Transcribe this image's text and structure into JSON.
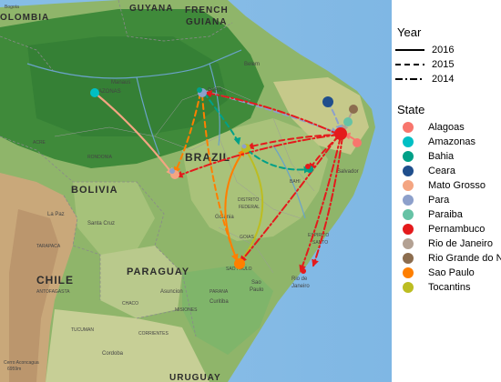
{
  "map": {
    "labels": {
      "colombia": "OLOMBIA",
      "guyana": "GUYANA",
      "french_guiana_1": "FRENCH",
      "french_guiana_2": "GUIANA",
      "bogota": "Bogota",
      "brazil": "BRAZIL",
      "bolivia": "BOLIVIA",
      "chile": "CHILE",
      "paraguay": "PARAGUAY",
      "uruguay": "URUGUAY",
      "manaus": "Manaus",
      "belem": "Belem",
      "amazonas": "AZONAS",
      "para": "PARA",
      "acre": "ACRE",
      "rondonia": "RONDONIA",
      "salvador": "Salvador",
      "bahia": "BAHI",
      "goiania": "Goiania",
      "distrito_1": "DISTRITO",
      "distrito_2": "FEDERAL",
      "goias": "GOIAS",
      "sao_paulo": "SAO PAULO",
      "sao_paulo_city_1": "Sao",
      "sao_paulo_city_2": "Paulo",
      "espirito_1": "ESPIRITO",
      "espirito_2": "SANTO",
      "rio_1": "Rio de",
      "rio_2": "Janeiro",
      "la_paz": "La Paz",
      "santa_cruz": "Santa Cruz",
      "tarapaca": "TARAPACA",
      "antofagasta": "ANTOFAGASTA",
      "chaco": "CHACO",
      "asuncion": "Asuncion",
      "curitiba": "Curitiba",
      "parana": "PARANA",
      "misiones": "MISIONES",
      "corrientes": "CORRIENTES",
      "tucuman": "TUCUMAN",
      "cordoba": "Cordoba",
      "cerro_1": "Cerro Aconcagua",
      "cerro_2": "6959m"
    }
  },
  "legend": {
    "year_title": "Year",
    "years": [
      {
        "label": "2016",
        "dash": "solid"
      },
      {
        "label": "2015",
        "dash": "dashed"
      },
      {
        "label": "2014",
        "dash": "dotdash"
      }
    ],
    "state_title": "State",
    "states": [
      {
        "label": "Alagoas",
        "color": "#f8766d"
      },
      {
        "label": "Amazonas",
        "color": "#00bfc4"
      },
      {
        "label": "Bahia",
        "color": "#00a087"
      },
      {
        "label": "Ceara",
        "color": "#1f4e8c"
      },
      {
        "label": "Mato Grosso",
        "color": "#f4a582"
      },
      {
        "label": "Para",
        "color": "#8da0cb"
      },
      {
        "label": "Paraiba",
        "color": "#66c2a5"
      },
      {
        "label": "Pernambuco",
        "color": "#e41a1c"
      },
      {
        "label": "Rio de Janeiro",
        "color": "#b3a193"
      },
      {
        "label": "Rio Grande do Norte",
        "color": "#8c6d4f"
      },
      {
        "label": "Sao Paulo",
        "color": "#ff7f00"
      },
      {
        "label": "Tocantins",
        "color": "#bcbd22"
      }
    ]
  }
}
